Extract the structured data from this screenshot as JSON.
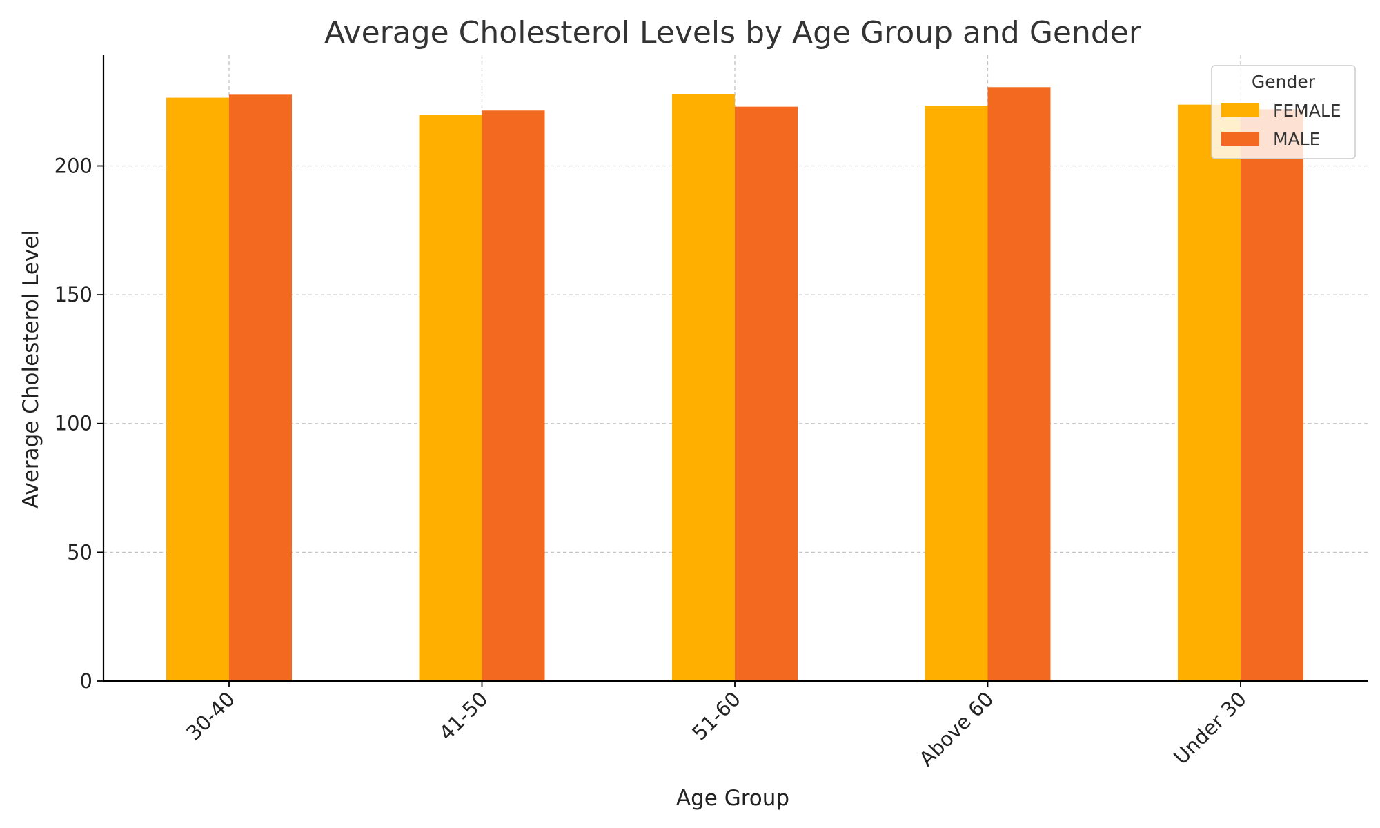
{
  "chart_data": {
    "type": "bar",
    "title": "Average Cholesterol Levels by Age Group and Gender",
    "xlabel": "Age Group",
    "ylabel": "Average Cholesterol Level",
    "categories": [
      "30-40",
      "41-50",
      "51-60",
      "Above 60",
      "Under 30"
    ],
    "series": [
      {
        "name": "FEMALE",
        "color": "#FFAF00",
        "values": [
          226.5,
          219.8,
          228.0,
          223.4,
          223.8
        ]
      },
      {
        "name": "MALE",
        "color": "#F46920",
        "values": [
          227.9,
          221.5,
          223.0,
          230.6,
          222.0
        ]
      }
    ],
    "ylim": [
      0,
      243
    ],
    "yticks": [
      0,
      50,
      100,
      150,
      200
    ],
    "grid": true,
    "legend": {
      "title": "Gender",
      "position": "top-right"
    }
  }
}
